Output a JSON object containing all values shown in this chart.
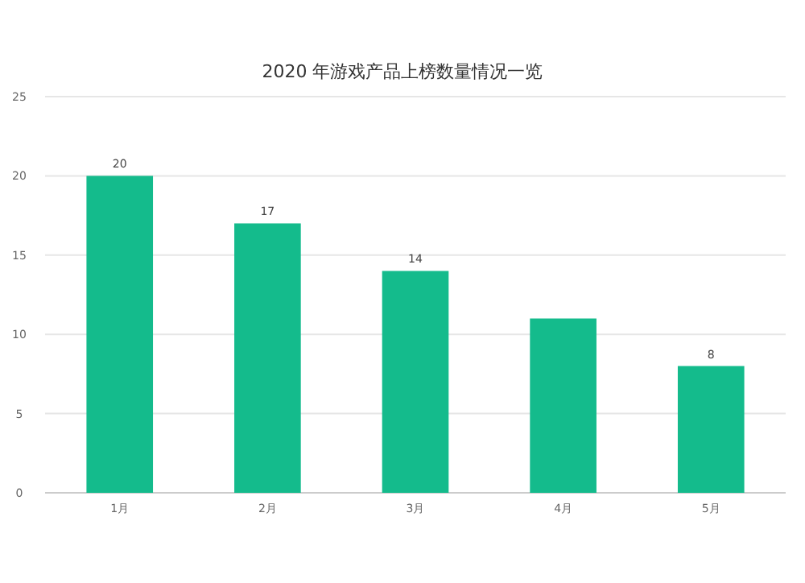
{
  "chart_data": {
    "type": "bar",
    "title": "2020 年游戏产品上榜数量情况一览",
    "categories": [
      "1月",
      "2月",
      "3月",
      "4月",
      "5月"
    ],
    "values": [
      20,
      17,
      14,
      11,
      8
    ],
    "value_labels": [
      "20",
      "17",
      "14",
      null,
      "8"
    ],
    "color": "#14bb8c",
    "ylim": [
      0,
      25
    ],
    "yticks": [
      0,
      5,
      10,
      15,
      20,
      25
    ],
    "grid": "y"
  }
}
